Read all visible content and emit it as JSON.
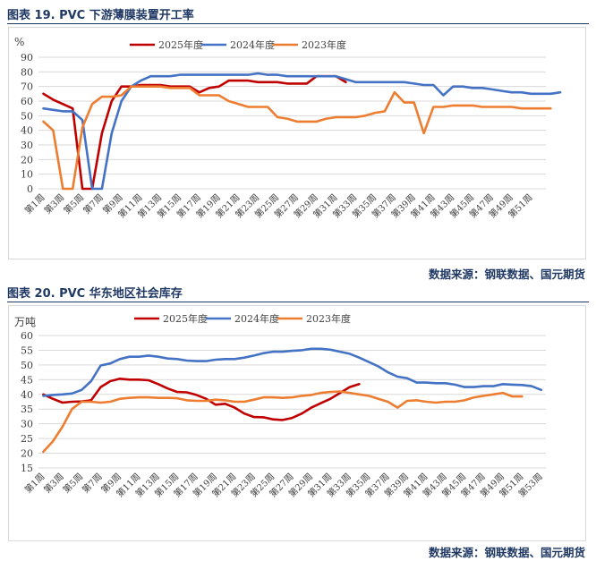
{
  "colors": {
    "s2025": "#c00000",
    "s2024": "#4472c4",
    "s2023": "#ed7d31",
    "title": "#1f3864",
    "grid": "#d9d9d9"
  },
  "fig19": {
    "title": "图表 19.  PVC 下游薄膜装置开工率",
    "source": "数据来源：钢联数据、国元期货"
  },
  "fig20": {
    "title": "图表 20.  PVC 华东地区社会库存",
    "source": "数据来源：钢联数据、国元期货"
  },
  "chart_data": [
    {
      "type": "line",
      "title": "",
      "ylabel": "%",
      "ylim": [
        0,
        90
      ],
      "yticks": [
        0,
        10,
        20,
        30,
        40,
        50,
        60,
        70,
        80,
        90
      ],
      "grid": true,
      "legend_position": "top",
      "x_ticks": [
        "第1周",
        "第3周",
        "第5周",
        "第7周",
        "第9周",
        "第11周",
        "第13周",
        "第15周",
        "第17周",
        "第19周",
        "第21周",
        "第23周",
        "第25周",
        "第27周",
        "第29周",
        "第31周",
        "第33周",
        "第35周",
        "第37周",
        "第39周",
        "第41周",
        "第43周",
        "第45周",
        "第47周",
        "第49周",
        "第51周"
      ],
      "series": [
        {
          "name": "2025年度",
          "color": "#c00000",
          "values": [
            65,
            61,
            58,
            55,
            0,
            0,
            38,
            60,
            70,
            70,
            71,
            71,
            71,
            70,
            70,
            70,
            66,
            69,
            70,
            74,
            74,
            74,
            73,
            73,
            73,
            72,
            72,
            72,
            77,
            77,
            77,
            73
          ]
        },
        {
          "name": "2024年度",
          "color": "#4472c4",
          "values": [
            55,
            54,
            53,
            53,
            47,
            0,
            0,
            38,
            60,
            70,
            74,
            77,
            77,
            77,
            78,
            78,
            78,
            78,
            78,
            78,
            78,
            78,
            79,
            78,
            78,
            77,
            77,
            77,
            77,
            77,
            77,
            75,
            73,
            73,
            73,
            73,
            73,
            73,
            72,
            71,
            71,
            64,
            70,
            70,
            69,
            69,
            68,
            67,
            66,
            66,
            65,
            65,
            65,
            66
          ]
        },
        {
          "name": "2023年度",
          "color": "#ed7d31",
          "values": [
            46,
            40,
            0,
            0,
            42,
            58,
            63,
            63,
            64,
            70,
            70,
            70,
            70,
            69,
            69,
            69,
            64,
            64,
            64,
            60,
            58,
            56,
            56,
            56,
            49,
            48,
            46,
            46,
            46,
            48,
            49,
            49,
            49,
            50,
            52,
            53,
            66,
            59,
            59,
            38,
            56,
            56,
            57,
            57,
            57,
            56,
            56,
            56,
            56,
            55,
            55,
            55,
            55
          ]
        }
      ]
    },
    {
      "type": "line",
      "title": "",
      "ylabel": "万吨",
      "ylim": [
        15,
        60
      ],
      "yticks": [
        15,
        20,
        25,
        30,
        35,
        40,
        45,
        50,
        55,
        60
      ],
      "grid": true,
      "legend_position": "top",
      "x_ticks": [
        "第1周",
        "第3周",
        "第5周",
        "第7周",
        "第9周",
        "第11周",
        "第13周",
        "第15周",
        "第17周",
        "第19周",
        "第21周",
        "第23周",
        "第25周",
        "第27周",
        "第29周",
        "第31周",
        "第33周",
        "第35周",
        "第37周",
        "第39周",
        "第41周",
        "第43周",
        "第45周",
        "第47周",
        "第49周",
        "第51周",
        "第53周"
      ],
      "series": [
        {
          "name": "2025年度",
          "color": "#c00000",
          "values": [
            40,
            38.5,
            37.2,
            37.5,
            37.6,
            38,
            42.5,
            44.5,
            45.3,
            45,
            45,
            44.8,
            43.5,
            42,
            40.8,
            40.7,
            39.8,
            38.5,
            36.5,
            36.8,
            35.5,
            33.5,
            32.3,
            32.2,
            31.5,
            31.3,
            32,
            33.5,
            35.5,
            37,
            38.5,
            40.5,
            42.5,
            43.5
          ]
        },
        {
          "name": "2024年度",
          "color": "#4472c4",
          "values": [
            39.5,
            39.8,
            40,
            40.3,
            41.5,
            44.5,
            49.8,
            50.5,
            52,
            52.8,
            52.8,
            53.2,
            52.8,
            52.2,
            52,
            51.5,
            51.3,
            51.3,
            51.8,
            52,
            52,
            52.5,
            53.2,
            54,
            54.5,
            54.5,
            54.8,
            55,
            55.5,
            55.5,
            55.2,
            54.5,
            53.8,
            52.5,
            51,
            49.5,
            47.5,
            46,
            45.5,
            44,
            44,
            43.8,
            43.8,
            43.3,
            42.5,
            42.5,
            42.8,
            42.8,
            43.5,
            43.3,
            43.2,
            42.8,
            41.5
          ]
        },
        {
          "name": "2023年度",
          "color": "#ed7d31",
          "values": [
            20.5,
            24,
            29,
            35,
            37.5,
            37.5,
            37.2,
            37.5,
            38.5,
            38.8,
            39,
            39,
            38.8,
            38.8,
            38.7,
            38,
            37.8,
            37.8,
            38.2,
            38,
            37.5,
            37.5,
            38.2,
            39,
            39,
            38.8,
            39,
            39.5,
            39.8,
            40.5,
            40.8,
            41,
            40.5,
            40,
            39.5,
            38.5,
            37.5,
            35.5,
            37.8,
            38,
            37.5,
            37.2,
            37.5,
            37.5,
            38,
            39,
            39.5,
            40,
            40.5,
            39.3,
            39.3
          ]
        }
      ]
    }
  ]
}
